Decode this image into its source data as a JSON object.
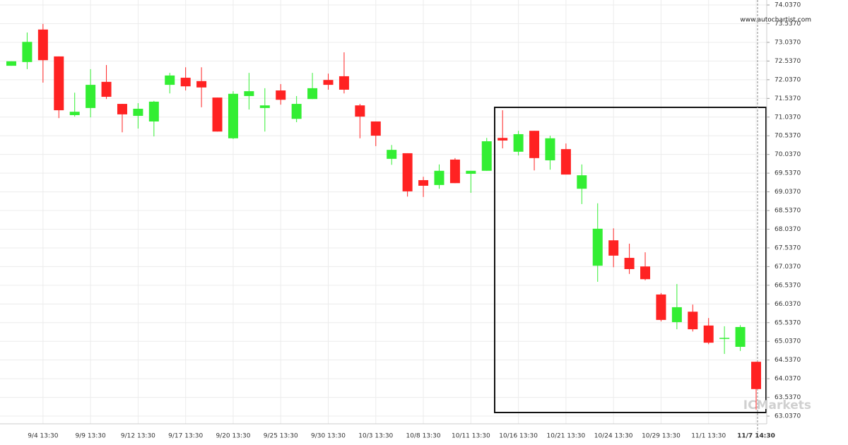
{
  "chart_data": {
    "type": "candlestick",
    "watermark": "www.autochartist.com",
    "logo": "ICMarkets",
    "up_color": "#33ee33",
    "down_color": "#ff2222",
    "grid": true,
    "categories": [
      null,
      null,
      "9/4 13:30",
      null,
      null,
      "9/9 13:30",
      null,
      null,
      "9/12 13:30",
      null,
      null,
      "9/17 13:30",
      null,
      null,
      "9/20 13:30",
      null,
      null,
      "9/25 13:30",
      null,
      null,
      "9/30 13:30",
      null,
      null,
      "10/3 13:30",
      null,
      null,
      "10/8 13:30",
      null,
      null,
      "10/11 13:30",
      null,
      null,
      "10/16 13:30",
      null,
      null,
      "10/21 13:30",
      null,
      null,
      "10/24 13:30",
      null,
      null,
      "10/29 13:30",
      null,
      null,
      "11/1 13:30",
      null,
      null,
      "11/7 14:30"
    ],
    "open": [
      72.41,
      72.51,
      73.38,
      72.66,
      71.09,
      71.28,
      71.98,
      71.39,
      71.07,
      70.92,
      71.9,
      72.09,
      72.0,
      71.56,
      70.47,
      71.6,
      71.28,
      71.75,
      70.99,
      71.52,
      72.03,
      72.13,
      71.35,
      70.92,
      69.92,
      70.07,
      69.35,
      69.22,
      69.9,
      69.52,
      69.6,
      70.48,
      70.11,
      70.67,
      69.88,
      70.18,
      69.12,
      67.06,
      67.74,
      67.27,
      67.04,
      66.29,
      65.55,
      65.83,
      65.46,
      65.11,
      64.89,
      64.49
    ],
    "high": [
      72.53,
      73.3,
      73.53,
      72.66,
      71.69,
      72.32,
      72.43,
      71.39,
      71.41,
      71.47,
      72.22,
      72.37,
      72.37,
      71.56,
      71.73,
      72.22,
      71.81,
      71.92,
      71.6,
      72.22,
      72.2,
      72.77,
      71.39,
      70.92,
      70.29,
      70.07,
      69.44,
      69.77,
      69.94,
      69.6,
      70.48,
      71.22,
      70.67,
      70.67,
      70.54,
      70.33,
      69.77,
      68.73,
      68.06,
      67.65,
      67.42,
      66.33,
      66.57,
      66.02,
      65.66,
      65.44,
      65.47,
      64.49
    ],
    "low": [
      72.41,
      72.32,
      71.96,
      71.01,
      71.05,
      71.03,
      71.52,
      70.63,
      70.73,
      70.52,
      71.67,
      71.75,
      71.3,
      70.65,
      70.45,
      71.24,
      70.65,
      71.37,
      70.9,
      71.52,
      71.77,
      71.67,
      70.47,
      70.26,
      69.76,
      68.91,
      68.9,
      69.12,
      69.27,
      69.01,
      69.6,
      70.2,
      70.01,
      69.61,
      69.63,
      69.5,
      68.71,
      66.63,
      67.02,
      66.84,
      66.67,
      65.57,
      65.36,
      65.3,
      64.96,
      64.7,
      64.78,
      63.21
    ],
    "close": [
      72.53,
      73.05,
      72.56,
      71.22,
      71.18,
      71.9,
      71.58,
      71.11,
      71.26,
      71.45,
      72.15,
      71.86,
      71.83,
      70.65,
      71.66,
      71.73,
      71.35,
      71.5,
      71.39,
      71.81,
      71.9,
      71.77,
      71.05,
      70.54,
      70.16,
      69.05,
      69.2,
      69.6,
      69.27,
      69.6,
      70.39,
      70.41,
      70.58,
      69.94,
      70.47,
      69.5,
      69.48,
      68.05,
      67.33,
      66.97,
      66.7,
      65.61,
      65.95,
      65.36,
      65.0,
      65.13,
      65.42,
      63.76
    ],
    "ylim": [
      62.83,
      74.17
    ],
    "yticks": [
      {
        "value": 74.037,
        "label": "74.0370"
      },
      {
        "value": 73.537,
        "label": "73.5370"
      },
      {
        "value": 73.037,
        "label": "73.0370"
      },
      {
        "value": 72.537,
        "label": "72.5370"
      },
      {
        "value": 72.037,
        "label": "72.0370"
      },
      {
        "value": 71.537,
        "label": "71.5370"
      },
      {
        "value": 71.037,
        "label": "71.0370"
      },
      {
        "value": 70.537,
        "label": "70.5370"
      },
      {
        "value": 70.037,
        "label": "70.0370"
      },
      {
        "value": 69.537,
        "label": "69.5370"
      },
      {
        "value": 69.037,
        "label": "69.0370"
      },
      {
        "value": 68.537,
        "label": "68.5370"
      },
      {
        "value": 68.037,
        "label": "68.0370"
      },
      {
        "value": 67.537,
        "label": "67.5370"
      },
      {
        "value": 67.037,
        "label": "67.0370"
      },
      {
        "value": 66.537,
        "label": "66.5370"
      },
      {
        "value": 66.037,
        "label": "66.0370"
      },
      {
        "value": 65.537,
        "label": "65.5370"
      },
      {
        "value": 65.037,
        "label": "65.0370"
      },
      {
        "value": 64.537,
        "label": "64.5370"
      },
      {
        "value": 64.037,
        "label": "64.0370"
      },
      {
        "value": 63.537,
        "label": "63.5370"
      },
      {
        "value": 63.037,
        "label": "63.0370"
      }
    ]
  }
}
